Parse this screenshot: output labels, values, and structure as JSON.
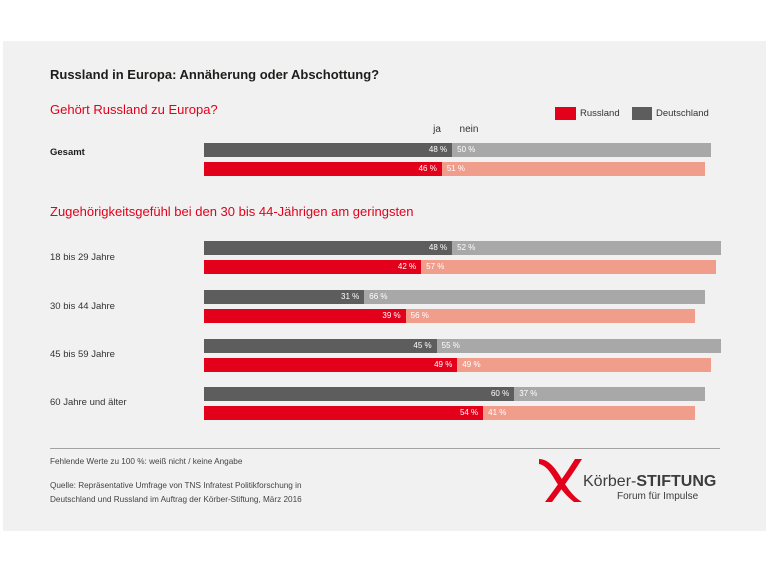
{
  "headings": {
    "overall": "Gehört Russland zu Europa?",
    "age_groups": "Zugehörigkeitsgefühl bei den 30 bis 44-Jährigen am geringsten"
  },
  "footnote": "Fehlende Werte zu 100 %: weiß nicht / keine Angabe",
  "source": [
    "Quelle: Repräsentative Umfrage von TNS Infratest Politikforschung in",
    "Deutschland und Russland im Auftrag der Körber-Stiftung, März 2016"
  ],
  "logo": {
    "name_part1": "Körber-",
    "name_part2": "STIFTUNG",
    "tagline": "Forum für Impulse",
    "color": "#e2001a"
  },
  "colors": {
    "accent": "#e2001a",
    "card_background": "#f1f1f1"
  },
  "chart_data": {
    "type": "bar",
    "orientation": "horizontal",
    "stacked": true,
    "title": "Russland in Europa: Annäherung oder Abschottung?",
    "unit": "%",
    "xlim": [
      0,
      100
    ],
    "legend_position": "top-right",
    "segments": [
      "ja",
      "nein"
    ],
    "categories": [
      "Gesamt",
      "18 bis 29 Jahre",
      "30 bis 44 Jahre",
      "45 bis 59 Jahre",
      "60 Jahre und älter"
    ],
    "series": [
      {
        "name": "Deutschland",
        "ja": [
          48,
          48,
          31,
          45,
          60
        ],
        "nein": [
          50,
          52,
          66,
          55,
          37
        ],
        "colors": {
          "ja": "#5d5d5d",
          "nein": "#a8a8a8"
        }
      },
      {
        "name": "Russland",
        "ja": [
          46,
          42,
          39,
          49,
          54
        ],
        "nein": [
          51,
          57,
          56,
          49,
          41
        ],
        "colors": {
          "ja": "#e2001a",
          "nein": "#f19d8c"
        }
      }
    ]
  }
}
